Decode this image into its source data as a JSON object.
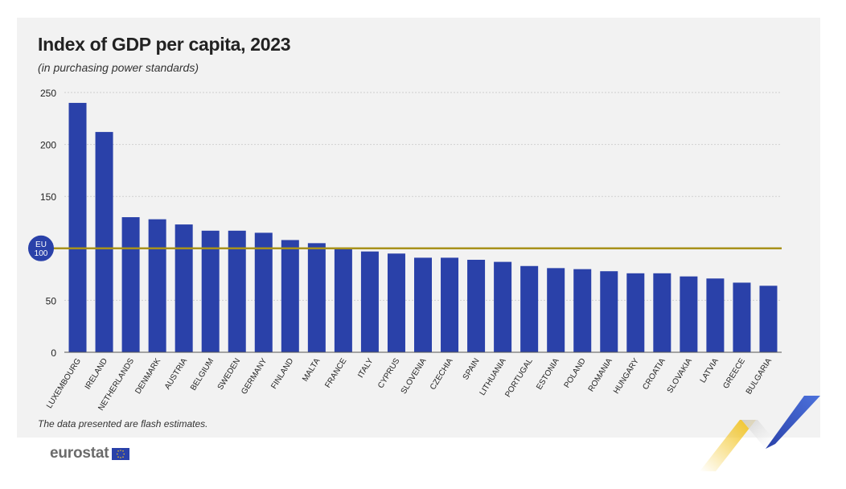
{
  "header": {
    "title": "Index of GDP per capita, 2023",
    "subtitle": "(in purchasing power standards)"
  },
  "footer": {
    "note": "The data presented are flash estimates.",
    "logo_text": "eurostat"
  },
  "colors": {
    "bar": "#2a41a9",
    "reference_line": "#a8921c",
    "badge": "#2a41a9",
    "gridline": "#cfcfcf",
    "background_panel": "#f2f2f2",
    "accent_yellow": "#f2c21b",
    "accent_blue": "#2a41a9"
  },
  "chart_data": {
    "type": "bar",
    "title": "Index of GDP per capita, 2023",
    "subtitle": "(in purchasing power standards)",
    "categories": [
      "LUXEMBOURG",
      "IRELAND",
      "NETHERLANDS",
      "DENMARK",
      "AUSTRIA",
      "BELGIUM",
      "SWEDEN",
      "GERMANY",
      "FINLAND",
      "MALTA",
      "FRANCE",
      "ITALY",
      "CYPRUS",
      "SLOVENIA",
      "CZECHIA",
      "SPAIN",
      "LITHUANIA",
      "PORTUGAL",
      "ESTONIA",
      "POLAND",
      "ROMANIA",
      "HUNGARY",
      "CROATIA",
      "SLOVAKIA",
      "LATVIA",
      "GREECE",
      "BULGARIA"
    ],
    "values": [
      240,
      212,
      130,
      128,
      123,
      117,
      117,
      115,
      108,
      105,
      100,
      97,
      95,
      91,
      91,
      89,
      87,
      83,
      81,
      80,
      78,
      76,
      76,
      73,
      71,
      67,
      64
    ],
    "ylim": [
      0,
      250
    ],
    "yticks": [
      0,
      50,
      150,
      200,
      250
    ],
    "grid": true,
    "reference": {
      "value": 100,
      "label_line1": "EU",
      "label_line2": "100"
    },
    "footnote": "The data presented are flash estimates."
  }
}
